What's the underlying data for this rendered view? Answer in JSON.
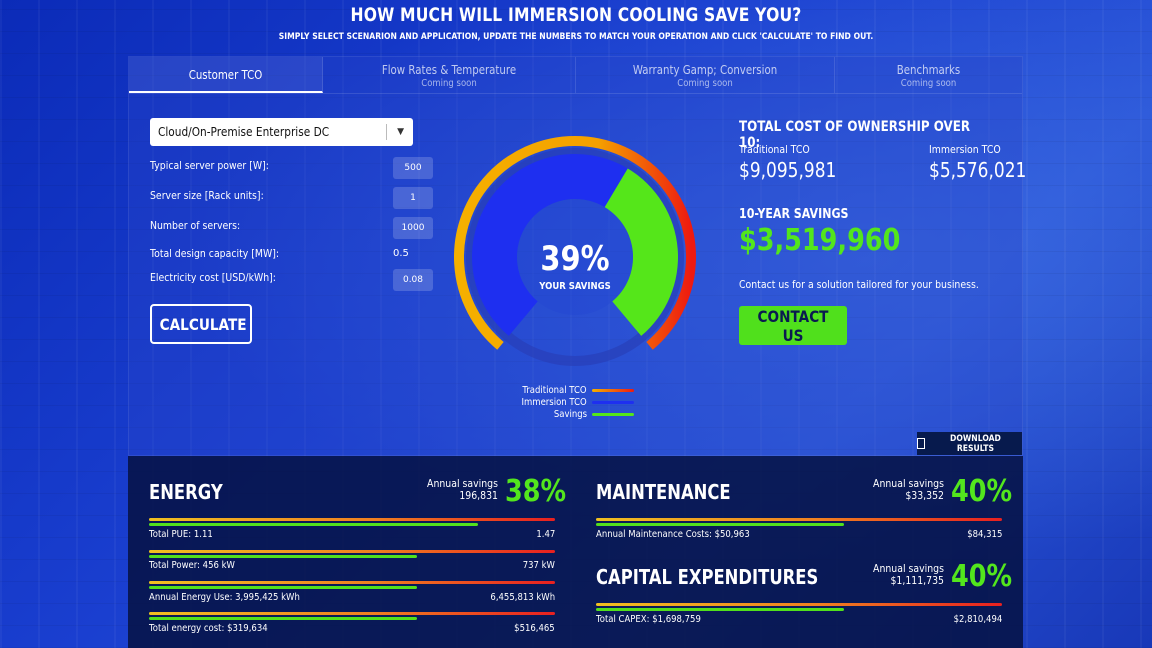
{
  "header": {
    "title": "HOW MUCH WILL IMMERSION COOLING SAVE YOU?",
    "subtitle": "SIMPLY SELECT SCENARION AND APPLICATION, UPDATE THE NUMBERS TO MATCH YOUR OPERATION AND CLICK 'CALCULATE' TO FIND OUT."
  },
  "tabs": [
    {
      "label": "Customer TCO",
      "sub": ""
    },
    {
      "label": "Flow Rates & Temperature",
      "sub": "Coming soon"
    },
    {
      "label": "Warranty Gamp; Conversion",
      "sub": "Coming soon"
    },
    {
      "label": "Benchmarks",
      "sub": "Coming soon"
    }
  ],
  "form": {
    "scenario": "Cloud/On-Premise Enterprise DC",
    "fields": [
      {
        "label": "Typical server power [W]:",
        "value": "500"
      },
      {
        "label": "Server size [Rack units]:",
        "value": "1"
      },
      {
        "label": "Number of servers:",
        "value": "1000"
      },
      {
        "label": "Total design capacity [MW]:",
        "value": "0.5"
      },
      {
        "label": "Electricity cost [USD/kWh]:",
        "value": "0.08"
      }
    ],
    "calculate_label": "CALCULATE"
  },
  "gauge": {
    "percent": "39%",
    "caption": "YOUR SAVINGS",
    "savings_fraction": 0.39,
    "colors": {
      "traditional_start": "#f5b000",
      "traditional_end": "#ee1a10",
      "immersion": "#1e2ff0",
      "savings": "#55e61a"
    }
  },
  "legend": [
    {
      "label": "Traditional TCO",
      "color": "linear-gradient(90deg,#f5b000,#ee1a10)"
    },
    {
      "label": "Immersion TCO",
      "color": "#1e2ff0"
    },
    {
      "label": "Savings",
      "color": "#55e61a"
    }
  ],
  "tco": {
    "title": "TOTAL COST OF OWNERSHIP OVER 10:",
    "traditional_label": "Traditional TCO",
    "traditional_value": "$9,095,981",
    "immersion_label": "Immersion TCO",
    "immersion_value": "$5,576,021",
    "savings_title": "10-YEAR SAVINGS",
    "savings_value": "$3,519,960",
    "contact_text": "Contact us for a solution tailored for your business.",
    "contact_label": "CONTACT US"
  },
  "download_label": "DOWNLOAD RESULTS",
  "energy": {
    "title": "ENERGY",
    "annual_label": "Annual savings",
    "annual_value": "196,831",
    "percent": "38%",
    "rows": [
      {
        "label": "Total PUE: 1.11",
        "right": "1.47",
        "green_fraction": 0.81
      },
      {
        "label": "Total Power: 456 kW",
        "right": "737 kW",
        "green_fraction": 0.66
      },
      {
        "label": "Annual Energy Use: 3,995,425 kWh",
        "right": "6,455,813 kWh",
        "green_fraction": 0.66
      },
      {
        "label": "Total energy cost: $319,634",
        "right": "$516,465",
        "green_fraction": 0.66
      }
    ]
  },
  "maintenance": {
    "title": "MAINTENANCE",
    "annual_label": "Annual savings",
    "annual_value": "$33,352",
    "percent": "40%",
    "row": {
      "label": "Annual Maintenance Costs: $50,963",
      "right": "$84,315",
      "green_fraction": 0.61
    }
  },
  "capex": {
    "title": "CAPITAL EXPENDITURES",
    "annual_label": "Annual savings",
    "annual_value": "$1,111,735",
    "percent": "40%",
    "row": {
      "label": "Total CAPEX: $1,698,759",
      "right": "$2,810,494",
      "green_fraction": 0.61
    }
  }
}
